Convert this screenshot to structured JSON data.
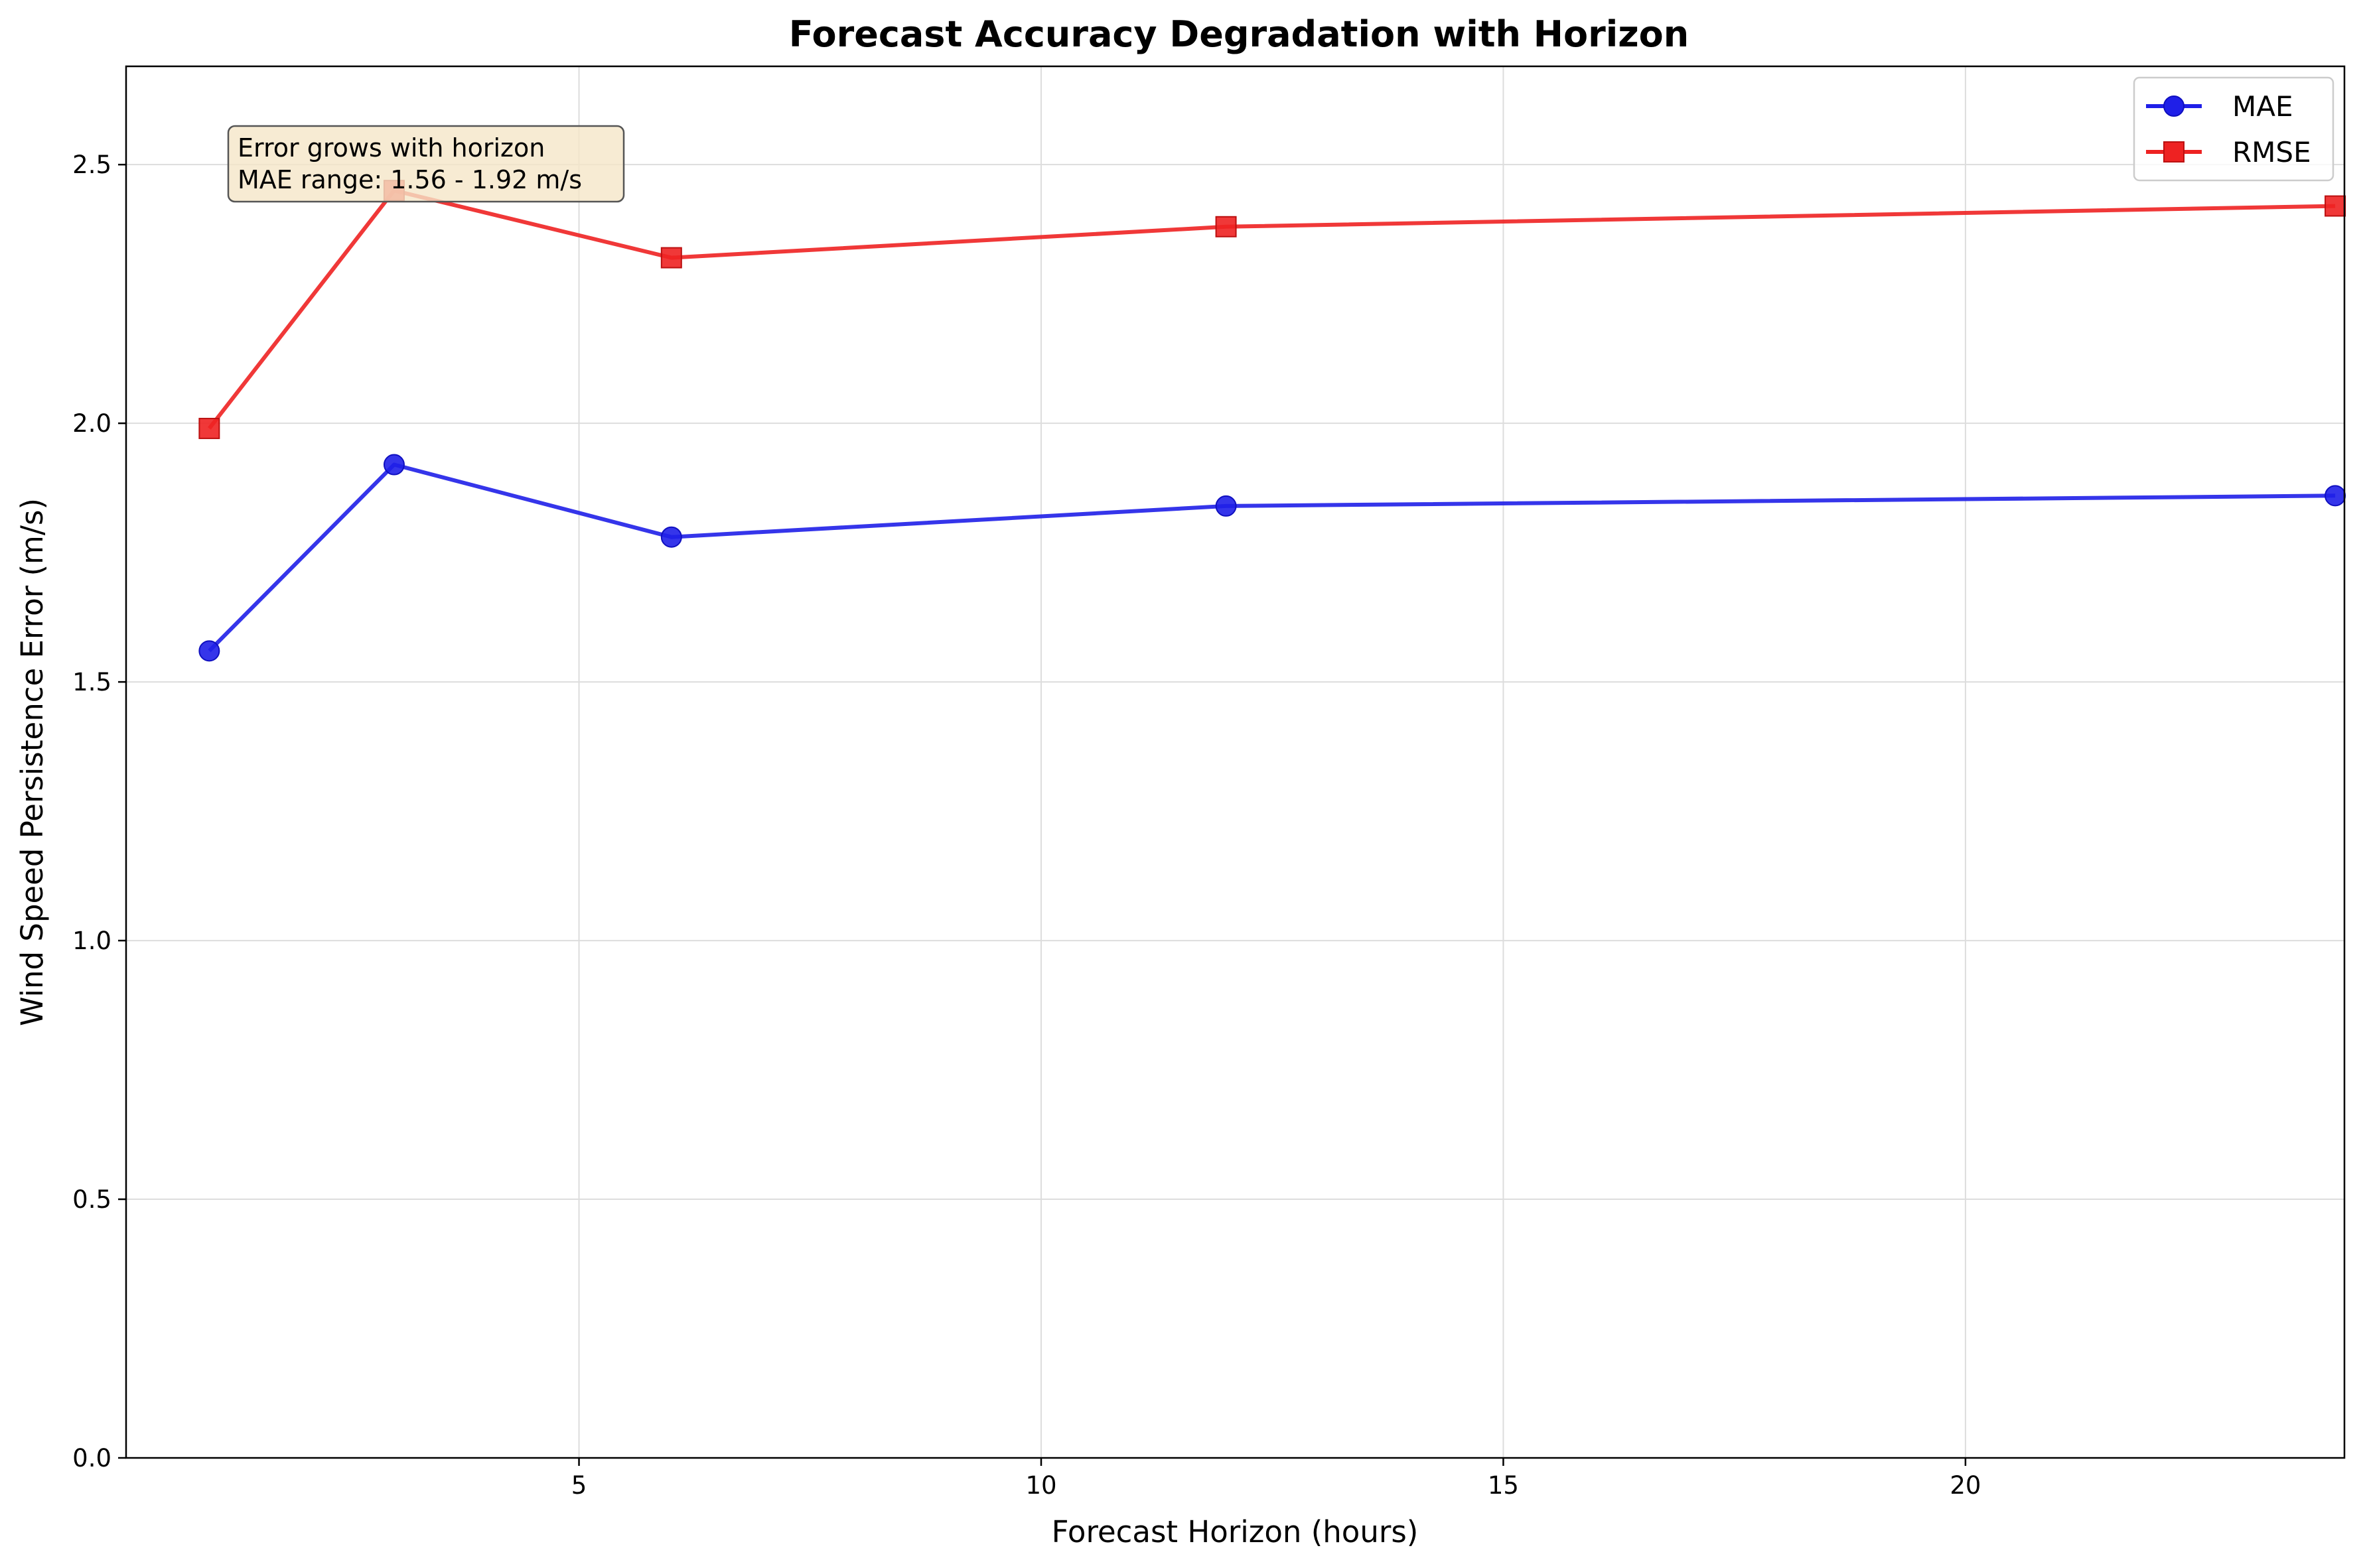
{
  "chart_data": {
    "type": "line",
    "title": "Forecast Accuracy Degradation with Horizon",
    "xlabel": "Forecast Horizon (hours)",
    "ylabel": "Wind Speed Persistence Error (m/s)",
    "x": [
      1,
      3,
      6,
      12,
      24
    ],
    "xlim": [
      0.1,
      24.1
    ],
    "ylim": [
      0,
      2.69
    ],
    "xticks": [
      5,
      10,
      15,
      20
    ],
    "xtick_labels": [
      "5",
      "10",
      "15",
      "20"
    ],
    "yticks": [
      0.0,
      0.5,
      1.0,
      1.5,
      2.0,
      2.5
    ],
    "ytick_labels": [
      "0.0",
      "0.5",
      "1.0",
      "1.5",
      "2.0",
      "2.5"
    ],
    "grid": true,
    "legend_position": "top-right",
    "series": [
      {
        "name": "MAE",
        "marker": "circle",
        "color": "#1f1fe8",
        "values": [
          1.56,
          1.92,
          1.78,
          1.84,
          1.86
        ]
      },
      {
        "name": "RMSE",
        "marker": "square",
        "color": "#ee2222",
        "values": [
          1.99,
          2.45,
          2.32,
          2.38,
          2.42
        ]
      }
    ],
    "annotation": {
      "lines": [
        "Error grows with horizon",
        "MAE range: 1.56 - 1.92 m/s"
      ],
      "box_color": "#f5e6c8"
    }
  }
}
